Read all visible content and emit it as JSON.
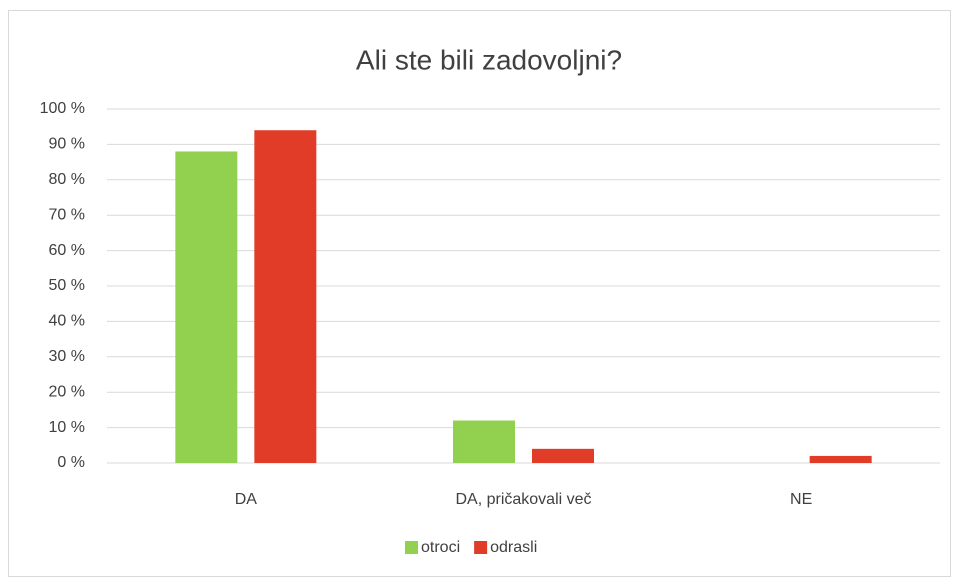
{
  "chart_data": {
    "type": "bar",
    "title": "Ali ste bili zadovoljni?",
    "categories": [
      "DA",
      "DA, pričakovali več",
      "NE"
    ],
    "series": [
      {
        "name": "otroci",
        "color": "#92d050",
        "values": [
          88,
          12,
          0
        ]
      },
      {
        "name": "odrasli",
        "color": "#e03c28",
        "values": [
          94,
          4,
          2
        ]
      }
    ],
    "ylim": [
      0,
      100
    ],
    "yticks": [
      {
        "value": 0,
        "label": "0 %"
      },
      {
        "value": 10,
        "label": "10 %"
      },
      {
        "value": 20,
        "label": "20 %"
      },
      {
        "value": 30,
        "label": "30 %"
      },
      {
        "value": 40,
        "label": "40 %"
      },
      {
        "value": 50,
        "label": "50 %"
      },
      {
        "value": 60,
        "label": "60 %"
      },
      {
        "value": 70,
        "label": "70 %"
      },
      {
        "value": 80,
        "label": "80 %"
      },
      {
        "value": 90,
        "label": "90 %"
      },
      {
        "value": 100,
        "label": "100 %"
      }
    ],
    "grid": true,
    "legend": "bottom"
  }
}
